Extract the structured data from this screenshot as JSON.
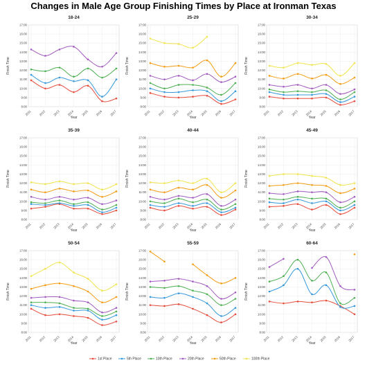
{
  "title": "Changes in Male Age Group Finishing Times by Place at Ironman Texas",
  "legend_items": [
    {
      "label": "1st Place",
      "color": "#e74c3c"
    },
    {
      "label": "5th Place",
      "color": "#3498db"
    },
    {
      "label": "10th Place",
      "color": "#4caf50"
    },
    {
      "label": "20th Place",
      "color": "#a25cbf"
    },
    {
      "label": "50th Place",
      "color": "#f39c12"
    },
    {
      "label": "100th Place",
      "color": "#f1e44c"
    }
  ],
  "chart_data": [
    {
      "type": "line",
      "title": "18-24",
      "xlabel": "Year",
      "ylabel": "Finish Time",
      "x": [
        2011,
        2012,
        2013,
        2014,
        2015,
        2016,
        2017
      ],
      "ylim": [
        8,
        17
      ],
      "yticks": [
        "8:00",
        "9:00",
        "10:00",
        "11:00",
        "12:00",
        "13:00",
        "14:00",
        "15:00",
        "16:00",
        "17:00"
      ],
      "series": [
        {
          "name": "1st Place",
          "values": [
            10.9,
            10.0,
            10.4,
            9.6,
            10.3,
            8.6,
            8.9
          ]
        },
        {
          "name": "5th Place",
          "values": [
            11.5,
            10.6,
            11.2,
            10.8,
            10.9,
            9.1,
            11.0
          ]
        },
        {
          "name": "10th Place",
          "values": [
            12.1,
            11.9,
            12.3,
            11.3,
            12.2,
            11.2,
            12.2
          ]
        },
        {
          "name": "20th Place",
          "values": [
            14.3,
            13.6,
            14.3,
            14.6,
            13.2,
            12.4,
            13.9
          ]
        }
      ]
    },
    {
      "type": "line",
      "title": "25-29",
      "xlabel": "Year",
      "ylabel": "Finish Time",
      "x": [
        2011,
        2012,
        2013,
        2014,
        2015,
        2016,
        2017
      ],
      "ylim": [
        8,
        17
      ],
      "yticks": [
        "8:00",
        "9:00",
        "10:00",
        "11:00",
        "12:00",
        "13:00",
        "14:00",
        "15:00",
        "16:00",
        "17:00"
      ],
      "series": [
        {
          "name": "1st Place",
          "values": [
            9.5,
            9.1,
            9.0,
            9.1,
            9.2,
            8.3,
            8.8
          ]
        },
        {
          "name": "5th Place",
          "values": [
            10.0,
            9.6,
            9.6,
            9.8,
            9.7,
            8.6,
            9.7
          ]
        },
        {
          "name": "10th Place",
          "values": [
            10.6,
            10.0,
            10.4,
            10.4,
            10.1,
            9.3,
            10.6
          ]
        },
        {
          "name": "20th Place",
          "values": [
            11.4,
            11.0,
            11.4,
            10.9,
            11.6,
            10.7,
            11.3
          ]
        },
        {
          "name": "50th Place",
          "values": [
            12.8,
            12.4,
            12.5,
            12.3,
            13.1,
            11.3,
            12.8
          ]
        },
        {
          "name": "100th Place",
          "values": [
            15.5,
            15.0,
            14.9,
            14.5,
            15.7,
            null,
            null
          ]
        }
      ]
    },
    {
      "type": "line",
      "title": "30-34",
      "xlabel": "Year",
      "ylabel": "Finish Time",
      "x": [
        2011,
        2012,
        2013,
        2014,
        2015,
        2016,
        2017
      ],
      "ylim": [
        8,
        17
      ],
      "yticks": [
        "8:00",
        "9:00",
        "10:00",
        "11:00",
        "12:00",
        "13:00",
        "14:00",
        "15:00",
        "16:00",
        "17:00"
      ],
      "series": [
        {
          "name": "1st Place",
          "values": [
            9.1,
            8.9,
            8.9,
            8.9,
            9.0,
            8.2,
            8.6
          ]
        },
        {
          "name": "5th Place",
          "values": [
            9.6,
            9.3,
            9.3,
            9.3,
            9.4,
            8.5,
            9.1
          ]
        },
        {
          "name": "10th Place",
          "values": [
            9.9,
            9.6,
            9.7,
            9.6,
            9.8,
            8.8,
            9.6
          ]
        },
        {
          "name": "20th Place",
          "values": [
            10.4,
            10.2,
            10.4,
            10.0,
            10.4,
            9.4,
            9.9
          ]
        },
        {
          "name": "50th Place",
          "values": [
            11.4,
            11.1,
            11.6,
            11.1,
            11.5,
            10.5,
            11.2
          ]
        },
        {
          "name": "100th Place",
          "values": [
            12.5,
            12.3,
            12.8,
            12.6,
            12.7,
            11.4,
            12.8
          ]
        }
      ]
    },
    {
      "type": "line",
      "title": "35-39",
      "xlabel": "Year",
      "ylabel": "Finish Time",
      "x": [
        2011,
        2012,
        2013,
        2014,
        2015,
        2016,
        2017
      ],
      "ylim": [
        8,
        17
      ],
      "yticks": [
        "8:00",
        "9:00",
        "10:00",
        "11:00",
        "12:00",
        "13:00",
        "14:00",
        "15:00",
        "16:00",
        "17:00"
      ],
      "series": [
        {
          "name": "1st Place",
          "values": [
            9.2,
            9.4,
            9.7,
            9.2,
            9.2,
            8.6,
            9.0
          ]
        },
        {
          "name": "5th Place",
          "values": [
            9.7,
            9.6,
            9.8,
            9.5,
            9.6,
            8.8,
            9.3
          ]
        },
        {
          "name": "10th Place",
          "values": [
            9.9,
            9.8,
            10.1,
            9.7,
            9.9,
            9.1,
            9.6
          ]
        },
        {
          "name": "20th Place",
          "values": [
            10.5,
            10.2,
            10.5,
            10.2,
            10.4,
            9.7,
            10.1
          ]
        },
        {
          "name": "50th Place",
          "values": [
            11.3,
            11.0,
            11.4,
            11.1,
            11.2,
            10.5,
            11.1
          ]
        },
        {
          "name": "100th Place",
          "values": [
            12.1,
            11.9,
            12.2,
            11.9,
            12.0,
            11.3,
            11.9
          ]
        }
      ]
    },
    {
      "type": "line",
      "title": "40-44",
      "xlabel": "Year",
      "ylabel": "Finish Time",
      "x": [
        2011,
        2012,
        2013,
        2014,
        2015,
        2016,
        2017
      ],
      "ylim": [
        8,
        17
      ],
      "yticks": [
        "8:00",
        "9:00",
        "10:00",
        "11:00",
        "12:00",
        "13:00",
        "14:00",
        "15:00",
        "16:00",
        "17:00"
      ],
      "series": [
        {
          "name": "1st Place",
          "values": [
            9.3,
            9.0,
            9.5,
            9.2,
            9.4,
            8.5,
            9.1
          ]
        },
        {
          "name": "5th Place",
          "values": [
            9.6,
            9.4,
            9.8,
            9.5,
            9.8,
            8.8,
            9.3
          ]
        },
        {
          "name": "10th Place",
          "values": [
            10.0,
            9.8,
            10.3,
            9.9,
            10.2,
            9.1,
            9.7
          ]
        },
        {
          "name": "20th Place",
          "values": [
            10.5,
            10.2,
            10.6,
            10.4,
            10.8,
            9.5,
            10.2
          ]
        },
        {
          "name": "50th Place",
          "values": [
            11.3,
            11.0,
            11.5,
            11.3,
            11.8,
            10.4,
            11.2
          ]
        },
        {
          "name": "100th Place",
          "values": [
            12.1,
            12.0,
            12.3,
            12.0,
            12.5,
            11.0,
            12.0
          ]
        }
      ]
    },
    {
      "type": "line",
      "title": "45-49",
      "xlabel": "Year",
      "ylabel": "Finish Time",
      "x": [
        2011,
        2012,
        2013,
        2014,
        2015,
        2016,
        2017
      ],
      "ylim": [
        8,
        17
      ],
      "yticks": [
        "8:00",
        "9:00",
        "10:00",
        "11:00",
        "12:00",
        "13:00",
        "14:00",
        "15:00",
        "16:00",
        "17:00"
      ],
      "series": [
        {
          "name": "1st Place",
          "values": [
            9.4,
            9.5,
            9.7,
            9.1,
            9.6,
            8.6,
            9.3
          ]
        },
        {
          "name": "5th Place",
          "values": [
            9.9,
            9.8,
            10.2,
            9.8,
            10.0,
            9.0,
            9.6
          ]
        },
        {
          "name": "10th Place",
          "values": [
            10.3,
            10.2,
            10.5,
            10.3,
            10.3,
            9.3,
            10.0
          ]
        },
        {
          "name": "20th Place",
          "values": [
            10.9,
            10.8,
            11.1,
            11.0,
            11.0,
            9.9,
            10.5
          ]
        },
        {
          "name": "50th Place",
          "values": [
            11.7,
            11.8,
            12.0,
            11.8,
            11.7,
            10.9,
            11.4
          ]
        },
        {
          "name": "100th Place",
          "values": [
            12.8,
            13.0,
            13.0,
            12.8,
            12.6,
            11.8,
            12.0
          ]
        }
      ]
    },
    {
      "type": "line",
      "title": "50-54",
      "xlabel": "Year",
      "ylabel": "Finish Time",
      "x": [
        2011,
        2012,
        2013,
        2014,
        2015,
        2016,
        2017
      ],
      "ylim": [
        8,
        17
      ],
      "yticks": [
        "8:00",
        "9:00",
        "10:00",
        "11:00",
        "12:00",
        "13:00",
        "14:00",
        "15:00",
        "16:00",
        "17:00"
      ],
      "series": [
        {
          "name": "1st Place",
          "values": [
            10.6,
            9.9,
            10.0,
            9.8,
            9.6,
            8.8,
            9.2
          ]
        },
        {
          "name": "5th Place",
          "values": [
            11.0,
            10.7,
            10.8,
            10.4,
            10.4,
            9.4,
            9.9
          ]
        },
        {
          "name": "10th Place",
          "values": [
            11.3,
            11.3,
            11.2,
            10.7,
            10.6,
            9.8,
            10.3
          ]
        },
        {
          "name": "20th Place",
          "values": [
            11.8,
            11.9,
            11.9,
            11.5,
            11.3,
            10.2,
            10.7
          ]
        },
        {
          "name": "50th Place",
          "values": [
            12.8,
            13.2,
            13.4,
            13.1,
            12.5,
            11.3,
            11.9
          ]
        },
        {
          "name": "100th Place",
          "values": [
            14.2,
            15.0,
            15.7,
            14.6,
            13.9,
            12.6,
            13.3
          ]
        }
      ]
    },
    {
      "type": "line",
      "title": "55-59",
      "xlabel": "Year",
      "ylabel": "Finish Time",
      "x": [
        2011,
        2012,
        2013,
        2014,
        2015,
        2016,
        2017
      ],
      "ylim": [
        8,
        17
      ],
      "yticks": [
        "8:00",
        "9:00",
        "10:00",
        "11:00",
        "12:00",
        "13:00",
        "14:00",
        "15:00",
        "16:00",
        "17:00"
      ],
      "series": [
        {
          "name": "1st Place",
          "values": [
            11.0,
            10.9,
            11.1,
            10.6,
            9.9,
            9.1,
            10.0
          ]
        },
        {
          "name": "5th Place",
          "values": [
            11.9,
            11.8,
            12.3,
            11.9,
            11.2,
            9.8,
            10.7
          ]
        },
        {
          "name": "10th Place",
          "values": [
            13.0,
            12.9,
            13.1,
            12.6,
            12.2,
            11.0,
            11.7
          ]
        },
        {
          "name": "20th Place",
          "values": [
            13.6,
            13.7,
            13.9,
            13.6,
            13.1,
            11.7,
            12.4
          ]
        },
        {
          "name": "50th Place",
          "values": [
            16.9,
            15.8,
            null,
            15.5,
            14.3,
            13.4,
            14.0
          ]
        }
      ]
    },
    {
      "type": "line",
      "title": "60-64",
      "xlabel": "Year",
      "ylabel": "Finish Time",
      "x": [
        2011,
        2012,
        2013,
        2014,
        2015,
        2016,
        2017
      ],
      "ylim": [
        8,
        17
      ],
      "yticks": [
        "8:00",
        "9:00",
        "10:00",
        "11:00",
        "12:00",
        "13:00",
        "14:00",
        "15:00",
        "16:00",
        "17:00"
      ],
      "series": [
        {
          "name": "1st Place",
          "values": [
            11.4,
            11.2,
            11.4,
            11.3,
            11.5,
            10.9,
            10.0
          ]
        },
        {
          "name": "5th Place",
          "values": [
            12.5,
            13.2,
            15.0,
            12.2,
            13.2,
            10.8,
            10.9
          ]
        },
        {
          "name": "10th Place",
          "values": [
            13.6,
            14.2,
            16.0,
            13.7,
            14.6,
            11.2,
            11.8
          ]
        },
        {
          "name": "20th Place",
          "values": [
            15.2,
            16.1,
            null,
            15.1,
            16.3,
            13.1,
            12.7
          ]
        },
        {
          "name": "50th Place",
          "values": [
            null,
            null,
            null,
            null,
            null,
            null,
            16.6
          ]
        }
      ]
    }
  ]
}
